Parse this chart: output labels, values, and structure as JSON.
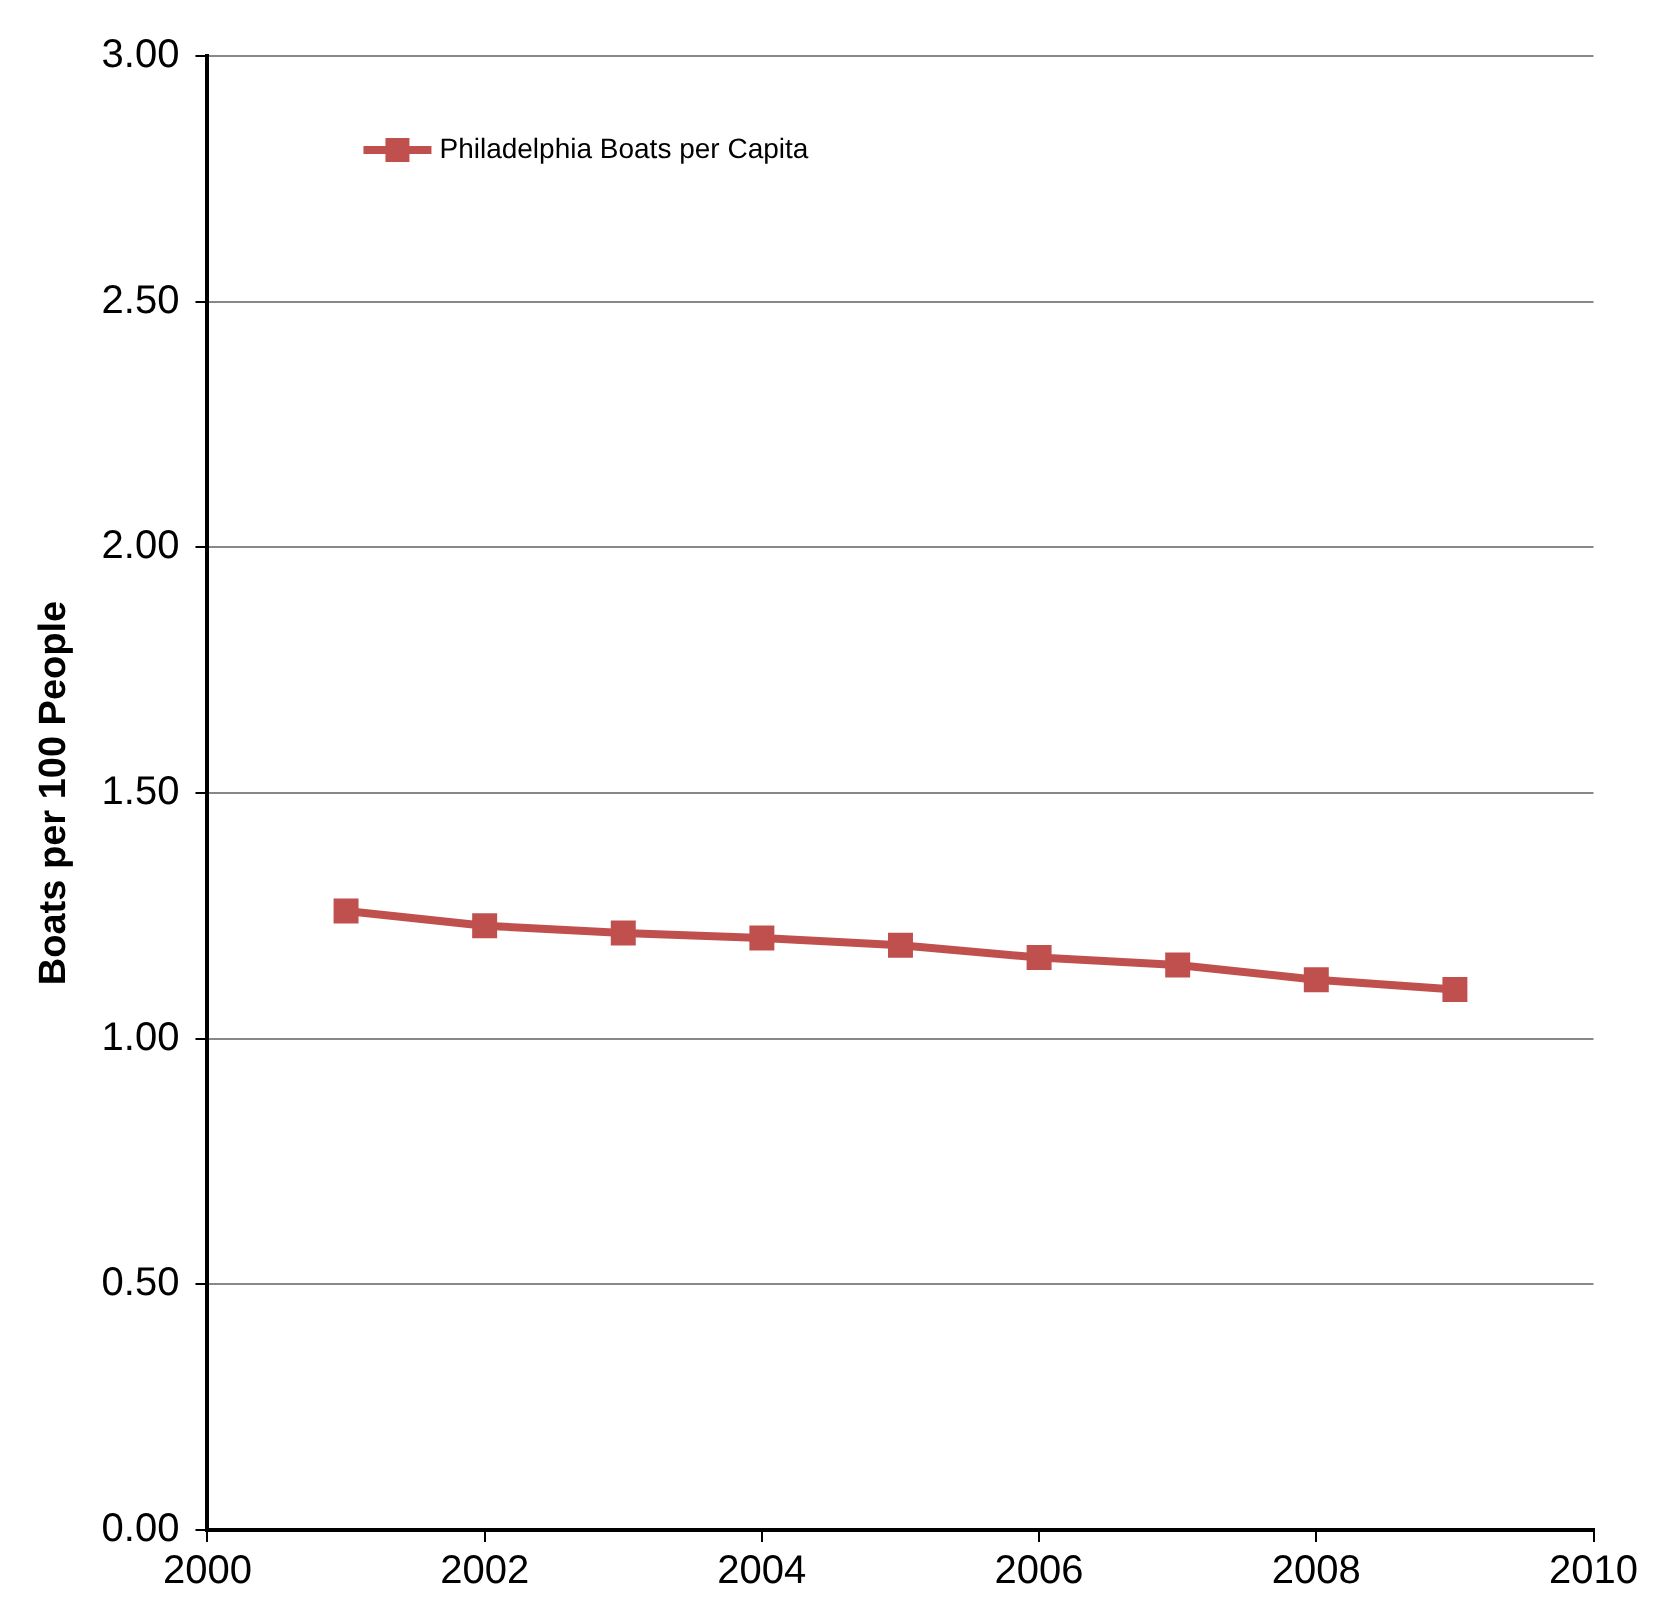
{
  "chart_data": {
    "type": "line",
    "ylabel": "Boats per 100 People",
    "x": [
      2001,
      2002,
      2003,
      2004,
      2005,
      2006,
      2007,
      2008,
      2009
    ],
    "series": [
      {
        "name": "Philadelphia Boats per Capita",
        "color": "#c0504d",
        "values": [
          1.26,
          1.23,
          1.215,
          1.205,
          1.19,
          1.165,
          1.15,
          1.12,
          1.1
        ]
      }
    ],
    "xlim": [
      2000,
      2010
    ],
    "xticks": [
      2000,
      2002,
      2004,
      2006,
      2008,
      2010
    ],
    "ylim": [
      0,
      3
    ],
    "yticks": [
      {
        "value": 0,
        "label": "0.00"
      },
      {
        "value": 0.5,
        "label": "0.50"
      },
      {
        "value": 1,
        "label": "1.00"
      },
      {
        "value": 1.5,
        "label": "1.50"
      },
      {
        "value": 2,
        "label": "2.00"
      },
      {
        "value": 2.5,
        "label": "2.50"
      },
      {
        "value": 3,
        "label": "3.00"
      }
    ],
    "grid": "y",
    "legend": "top left",
    "marker": "square",
    "line_style": "solid"
  }
}
